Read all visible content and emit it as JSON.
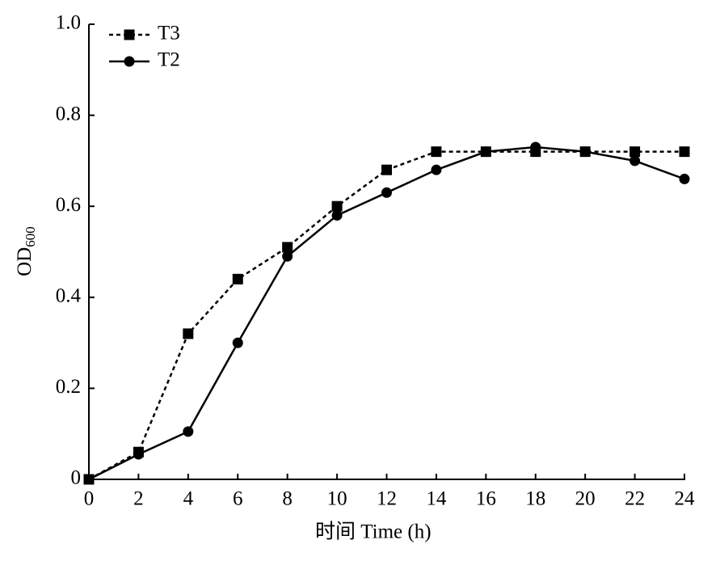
{
  "chart_data": {
    "type": "line",
    "xlabel": "时间 Time (h)",
    "ylabel": {
      "text": "OD",
      "subscript": "600"
    },
    "x": [
      0,
      2,
      4,
      6,
      8,
      10,
      12,
      14,
      16,
      18,
      20,
      22,
      24
    ],
    "series": [
      {
        "name": "T3",
        "color": "#000000",
        "marker": "square",
        "dash": true,
        "values": [
          0,
          0.06,
          0.32,
          0.44,
          0.51,
          0.6,
          0.68,
          0.72,
          0.72,
          0.72,
          0.72,
          0.72,
          0.72
        ]
      },
      {
        "name": "T2",
        "color": "#000000",
        "marker": "circle",
        "dash": false,
        "values": [
          0,
          0.055,
          0.105,
          0.3,
          0.49,
          0.58,
          0.63,
          0.68,
          0.72,
          0.73,
          0.72,
          0.7,
          0.66
        ]
      }
    ],
    "xlim": [
      0,
      24
    ],
    "xticks": [
      0,
      2,
      4,
      6,
      8,
      10,
      12,
      14,
      16,
      18,
      20,
      22,
      24
    ],
    "ylim": [
      0,
      1
    ],
    "yticks": [
      0,
      0.2,
      0.4,
      0.6,
      0.8,
      {
        "value": 1,
        "label": "1.0"
      }
    ],
    "legend": "upper-left",
    "grid": false
  }
}
